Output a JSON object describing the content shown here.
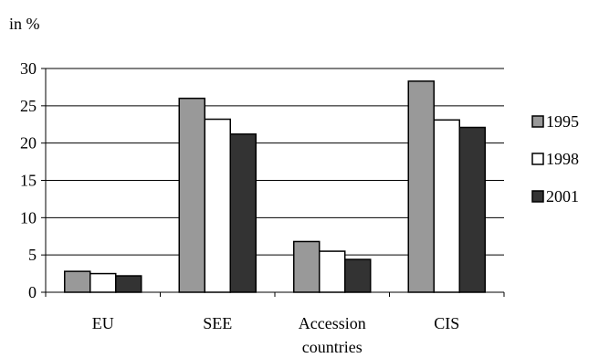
{
  "chart_data": {
    "type": "bar",
    "ylabel": "in %",
    "ylim": [
      0,
      30
    ],
    "yticks": [
      0,
      5,
      10,
      15,
      20,
      25,
      30
    ],
    "grid": true,
    "legend_position": "right",
    "categories": [
      [
        "EU"
      ],
      [
        "SEE"
      ],
      [
        "Accession",
        "countries"
      ],
      [
        "CIS"
      ]
    ],
    "series": [
      {
        "name": "1995",
        "color": "#999999",
        "values": [
          2.8,
          26.0,
          6.8,
          28.3
        ]
      },
      {
        "name": "1998",
        "color": "#ffffff",
        "values": [
          2.5,
          23.2,
          5.5,
          23.1
        ]
      },
      {
        "name": "2001",
        "color": "#333333",
        "values": [
          2.2,
          21.2,
          4.4,
          22.1
        ]
      }
    ]
  }
}
